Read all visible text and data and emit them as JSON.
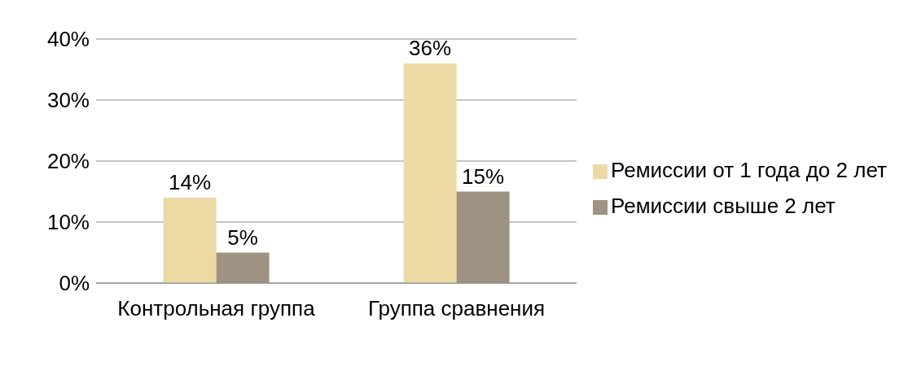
{
  "chart_data": {
    "type": "bar",
    "categories": [
      "Контрольная группа",
      "Группа сравнения"
    ],
    "series": [
      {
        "name": "Ремиссии от 1 года до 2 лет",
        "color": "#ecd9a4",
        "values": [
          14,
          36
        ],
        "value_labels": [
          "14%",
          "36%"
        ]
      },
      {
        "name": "Ремиссии свыше 2 лет",
        "color": "#9e9282",
        "values": [
          5,
          15
        ],
        "value_labels": [
          "5%",
          "15%"
        ]
      }
    ],
    "ylim": [
      0,
      40
    ],
    "yticks": [
      {
        "value": 0,
        "label": "0%"
      },
      {
        "value": 10,
        "label": "10%"
      },
      {
        "value": 20,
        "label": "20%"
      },
      {
        "value": 30,
        "label": "30%"
      },
      {
        "value": 40,
        "label": "40%"
      }
    ],
    "grid": "y",
    "legend": "right"
  }
}
